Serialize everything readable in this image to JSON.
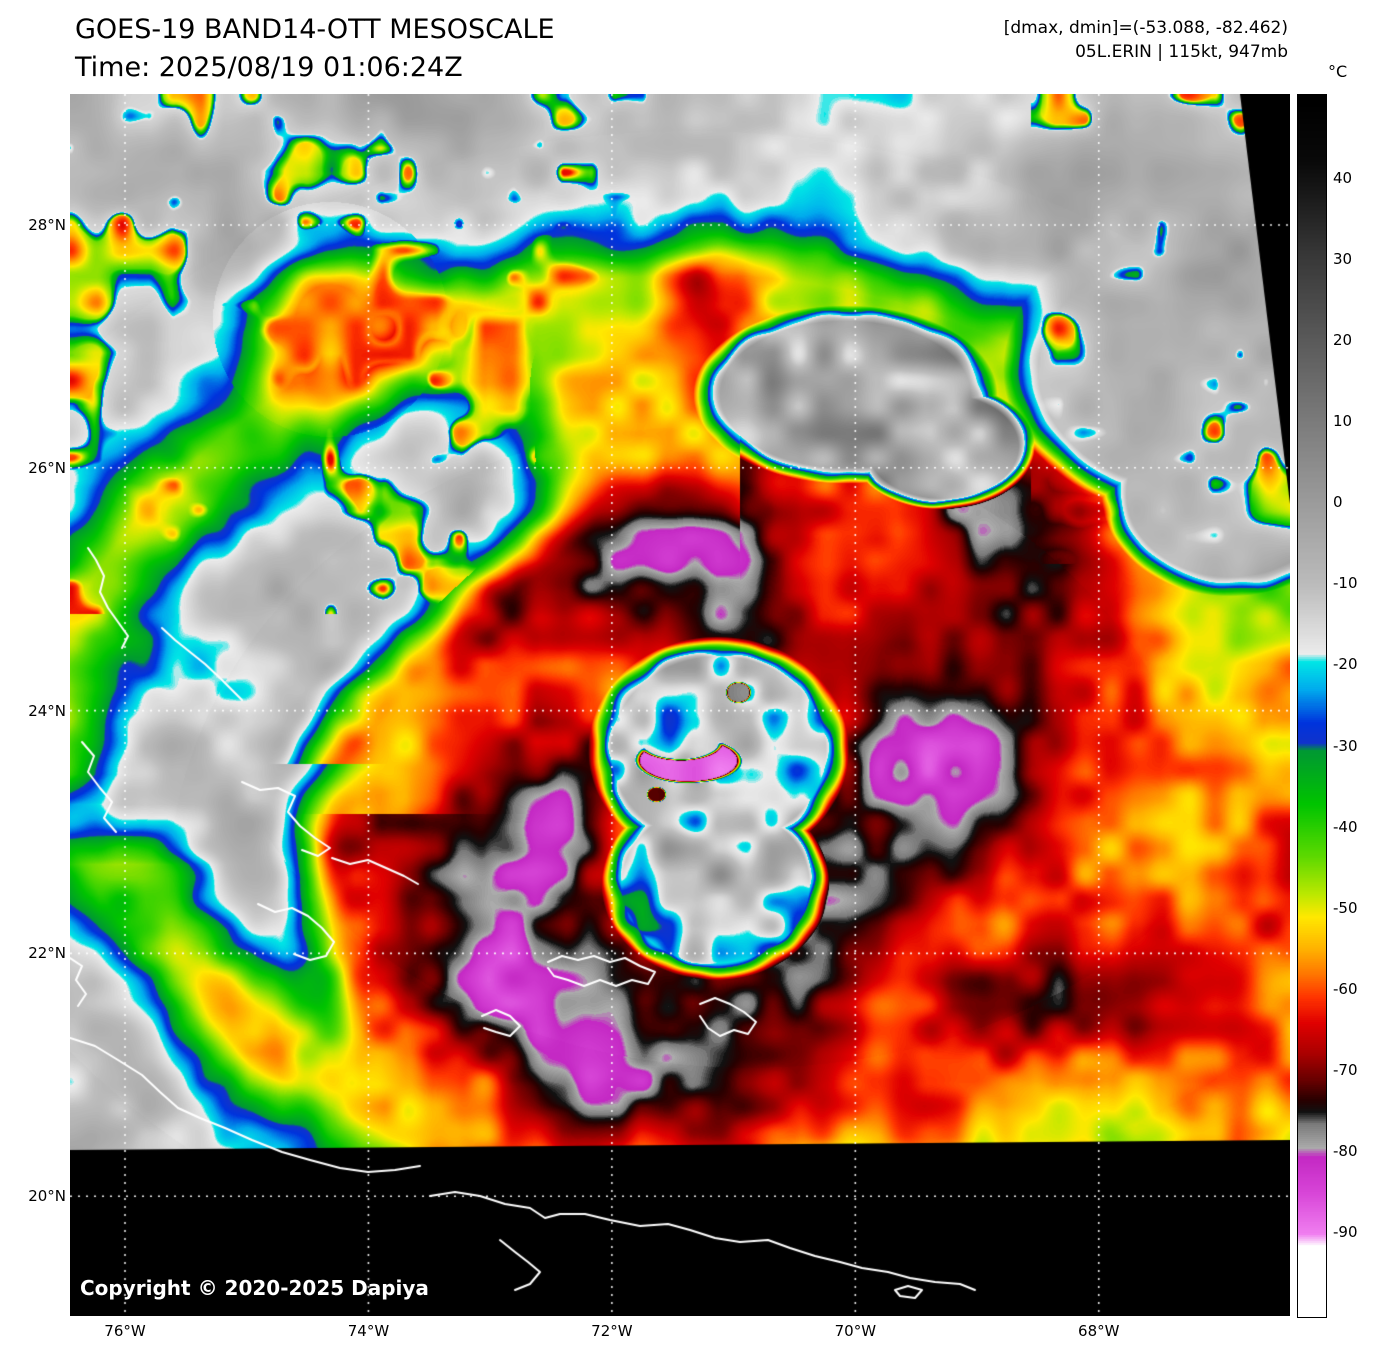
{
  "header": {
    "title": "GOES-19 BAND14-OTT MESOSCALE",
    "time": "Time: 2025/08/19 01:06:24Z",
    "dmax_dmin": "[dmax, dmin]=(-53.088, -82.462)",
    "storm": "05L.ERIN | 115kt, 947mb"
  },
  "colorbar": {
    "unit": "°C",
    "ticks": [
      {
        "label": "40",
        "value": 40
      },
      {
        "label": "30",
        "value": 30
      },
      {
        "label": "20",
        "value": 20
      },
      {
        "label": "10",
        "value": 10
      },
      {
        "label": "0",
        "value": 0
      },
      {
        "label": "-10",
        "value": -10
      },
      {
        "label": "-20",
        "value": -20
      },
      {
        "label": "-30",
        "value": -30
      },
      {
        "label": "-40",
        "value": -40
      },
      {
        "label": "-50",
        "value": -50
      },
      {
        "label": "-60",
        "value": -60
      },
      {
        "label": "-70",
        "value": -70
      },
      {
        "label": "-80",
        "value": -80
      },
      {
        "label": "-90",
        "value": -90
      }
    ],
    "stops": [
      [
        50,
        "#000000"
      ],
      [
        42,
        "#0a0a0a"
      ],
      [
        30,
        "#3a3a3a"
      ],
      [
        20,
        "#5b5b5b"
      ],
      [
        10,
        "#7c7c7c"
      ],
      [
        0,
        "#9c9c9c"
      ],
      [
        -10,
        "#bcbcbc"
      ],
      [
        -18.5,
        "#ececec"
      ],
      [
        -19.5,
        "#00e6e6"
      ],
      [
        -23,
        "#00aaee"
      ],
      [
        -27,
        "#0033dd"
      ],
      [
        -29.5,
        "#1133cc"
      ],
      [
        -30.5,
        "#009933"
      ],
      [
        -37,
        "#00c400"
      ],
      [
        -43,
        "#55d800"
      ],
      [
        -48,
        "#b8e800"
      ],
      [
        -51,
        "#ffe900"
      ],
      [
        -55,
        "#ffb000"
      ],
      [
        -58,
        "#ff7700"
      ],
      [
        -61,
        "#ff3300"
      ],
      [
        -64,
        "#e00000"
      ],
      [
        -68,
        "#a80000"
      ],
      [
        -71,
        "#6a0000"
      ],
      [
        -73.5,
        "#2a0000"
      ],
      [
        -75,
        "#111111"
      ],
      [
        -76.5,
        "#7a7a7a"
      ],
      [
        -79.5,
        "#ababab"
      ],
      [
        -80.5,
        "#c429c4"
      ],
      [
        -85,
        "#d846d8"
      ],
      [
        -90,
        "#f07ef0"
      ],
      [
        -91.5,
        "#ffffff"
      ],
      [
        -100,
        "#ffffff"
      ]
    ]
  },
  "map": {
    "lat_labels": [
      {
        "label": "28°N",
        "value": 28
      },
      {
        "label": "26°N",
        "value": 26
      },
      {
        "label": "24°N",
        "value": 24
      },
      {
        "label": "22°N",
        "value": 22
      },
      {
        "label": "20°N",
        "value": 20
      }
    ],
    "lon_labels": [
      {
        "label": "76°W",
        "value": 76
      },
      {
        "label": "74°W",
        "value": 74
      },
      {
        "label": "72°W",
        "value": 72
      },
      {
        "label": "70°W",
        "value": 70
      },
      {
        "label": "68°W",
        "value": 68
      }
    ],
    "copyright": "Copyright © 2020-2025 Dapiya"
  }
}
